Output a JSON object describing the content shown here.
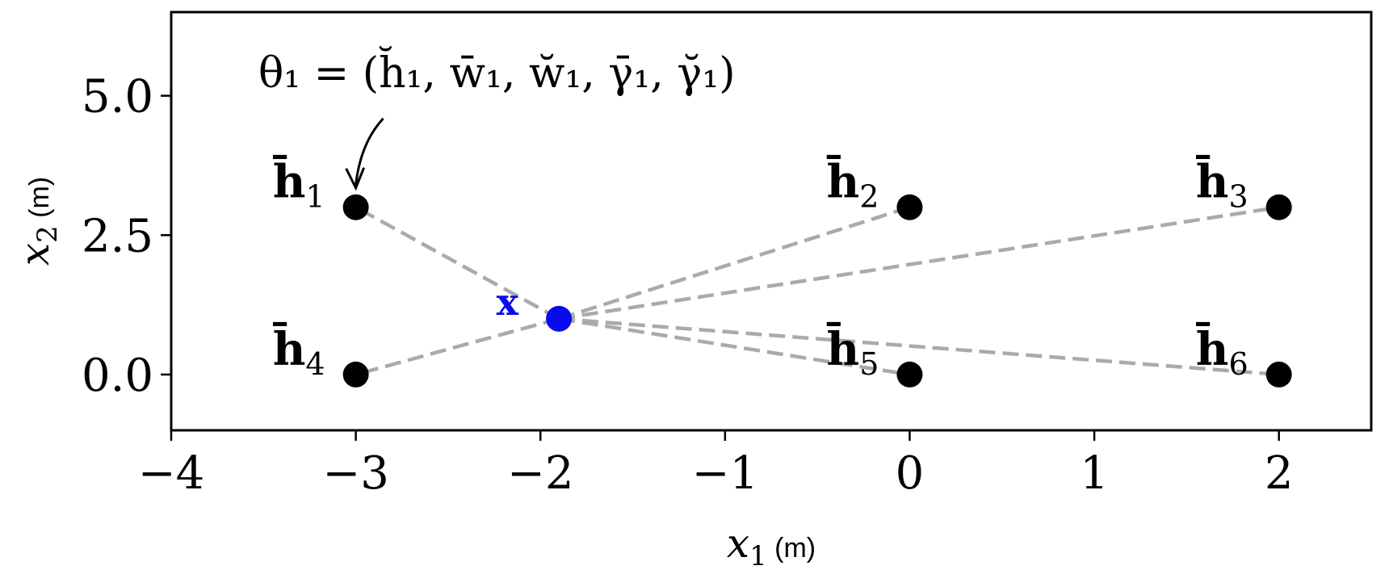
{
  "chart_data": {
    "type": "scatter",
    "title": "",
    "xlabel": {
      "var": "x",
      "sub": "1",
      "unit": "(m)"
    },
    "ylabel": {
      "var": "x",
      "sub": "2",
      "unit": "(m)"
    },
    "xlim": [
      -4,
      2.5
    ],
    "ylim": [
      -1,
      6.5
    ],
    "xticks": [
      -4,
      -3,
      -2,
      -1,
      0,
      1,
      2
    ],
    "xtick_labels": [
      "−4",
      "−3",
      "−2",
      "−1",
      "0",
      "1",
      "2"
    ],
    "yticks": [
      0,
      2.5,
      5
    ],
    "ytick_labels": [
      "0.0",
      "2.5",
      "5.0"
    ],
    "grid": false,
    "anchors": [
      {
        "name": "h̄",
        "sub": "1",
        "x": -3,
        "y": 3,
        "label_side": "left"
      },
      {
        "name": "h̄",
        "sub": "2",
        "x": 0,
        "y": 3,
        "label_side": "left"
      },
      {
        "name": "h̄",
        "sub": "3",
        "x": 2,
        "y": 3,
        "label_side": "left"
      },
      {
        "name": "h̄",
        "sub": "4",
        "x": -3,
        "y": 0,
        "label_side": "left"
      },
      {
        "name": "h̄",
        "sub": "5",
        "x": 0,
        "y": 0,
        "label_side": "left"
      },
      {
        "name": "h̄",
        "sub": "6",
        "x": 2,
        "y": 0,
        "label_side": "left"
      }
    ],
    "target": {
      "label": "x",
      "x": -1.9,
      "y": 1.0
    },
    "annotation": {
      "text": "θ₁ = (h̆₁, w̄₁, w̆₁, γ̄₁, γ̆₁)",
      "points_to_anchor": 0
    },
    "colors": {
      "anchor": "#000000",
      "target": "#0a0aee",
      "link": "#aaaaaa"
    }
  }
}
